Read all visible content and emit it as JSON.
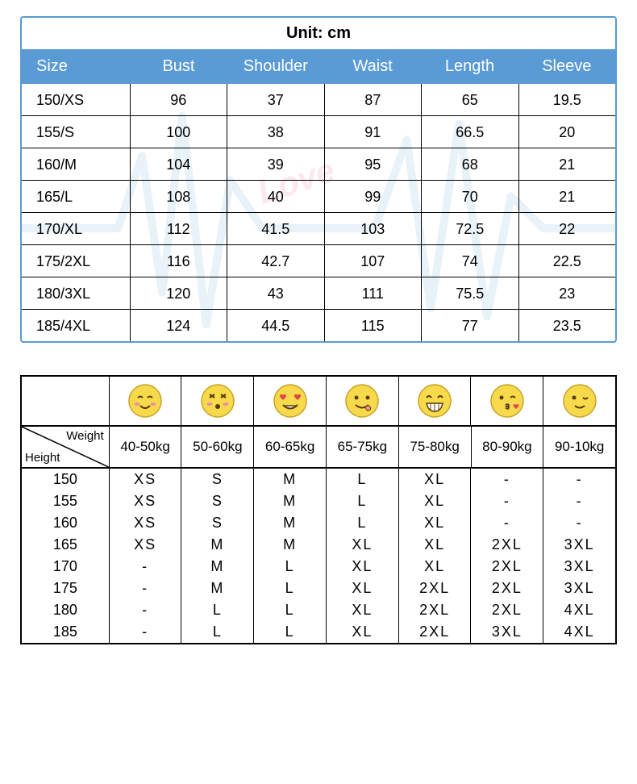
{
  "table1": {
    "title": "Unit: cm",
    "header_bg": "#5a9bd5",
    "header_fg": "#ffffff",
    "border_color": "#5a9bd5",
    "grid_color": "#000000",
    "watermark": {
      "line_color": "#a8cde8",
      "text": "Love",
      "text_color": "#f4a7b9"
    },
    "columns": [
      "Size",
      "Bust",
      "Shoulder",
      "Waist",
      "Length",
      "Sleeve"
    ],
    "rows": [
      [
        "150/XS",
        "96",
        "37",
        "87",
        "65",
        "19.5"
      ],
      [
        "155/S",
        "100",
        "38",
        "91",
        "66.5",
        "20"
      ],
      [
        "160/M",
        "104",
        "39",
        "95",
        "68",
        "21"
      ],
      [
        "165/L",
        "108",
        "40",
        "99",
        "70",
        "21"
      ],
      [
        "170/XL",
        "112",
        "41.5",
        "103",
        "72.5",
        "22"
      ],
      [
        "175/2XL",
        "116",
        "42.7",
        "107",
        "74",
        "22.5"
      ],
      [
        "180/3XL",
        "120",
        "43",
        "111",
        "75.5",
        "23"
      ],
      [
        "185/4XL",
        "124",
        "44.5",
        "115",
        "77",
        "23.5"
      ]
    ]
  },
  "table2": {
    "border_color": "#000000",
    "emoji_fill": "#f7d94c",
    "emoji_stroke": "#c9a227",
    "diag_labels": {
      "top": "Weight",
      "bottom": "Height"
    },
    "emojis": [
      "blush",
      "surprised",
      "heart-eyes",
      "yum",
      "grin",
      "kiss-heart",
      "wink"
    ],
    "weight_headers": [
      "40-50kg",
      "50-60kg",
      "60-65kg",
      "65-75kg",
      "75-80kg",
      "80-90kg",
      "90-10kg"
    ],
    "rows": [
      {
        "h": "150",
        "v": [
          "XS",
          "S",
          "M",
          "L",
          "XL",
          "-",
          "-"
        ]
      },
      {
        "h": "155",
        "v": [
          "XS",
          "S",
          "M",
          "L",
          "XL",
          "-",
          "-"
        ]
      },
      {
        "h": "160",
        "v": [
          "XS",
          "S",
          "M",
          "L",
          "XL",
          "-",
          "-"
        ]
      },
      {
        "h": "165",
        "v": [
          "XS",
          "M",
          "M",
          "XL",
          "XL",
          "2XL",
          "3XL"
        ]
      },
      {
        "h": "170",
        "v": [
          "-",
          "M",
          "L",
          "XL",
          "XL",
          "2XL",
          "3XL"
        ]
      },
      {
        "h": "175",
        "v": [
          "-",
          "M",
          "L",
          "XL",
          "2XL",
          "2XL",
          "3XL"
        ]
      },
      {
        "h": "180",
        "v": [
          "-",
          "L",
          "L",
          "XL",
          "2XL",
          "2XL",
          "4XL"
        ]
      },
      {
        "h": "185",
        "v": [
          "-",
          "L",
          "L",
          "XL",
          "2XL",
          "3XL",
          "4XL"
        ]
      }
    ]
  }
}
